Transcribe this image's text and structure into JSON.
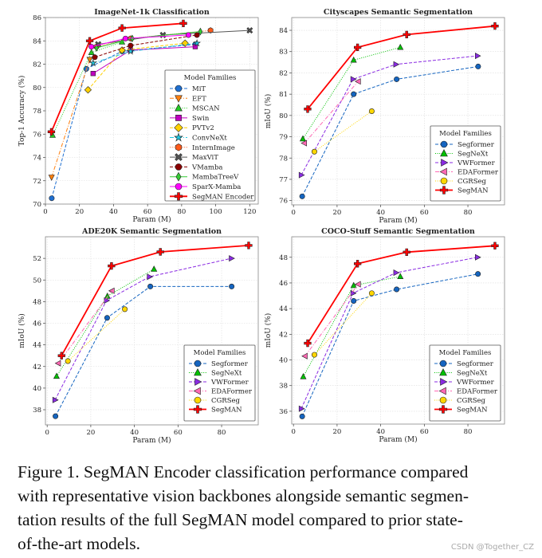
{
  "chart_data": [
    {
      "type": "line",
      "title": "ImageNet-1k Classification",
      "xlabel": "Param (M)",
      "ylabel": "Top-1 Accuracy (%)",
      "xlim": [
        0,
        125
      ],
      "ylim": [
        70,
        86
      ],
      "xticks": [
        0,
        20,
        40,
        60,
        80,
        100,
        120
      ],
      "yticks": [
        70,
        72,
        74,
        76,
        78,
        80,
        82,
        84,
        86
      ],
      "grid": true,
      "legend": {
        "title": "Model Families",
        "placement": "lower-right"
      },
      "series": [
        {
          "name": "MiT",
          "color": "#1f6fd0",
          "marker": "circle",
          "line": "dashed",
          "points": [
            [
              3.7,
              70.5
            ],
            [
              24,
              81.6
            ],
            [
              45,
              83.1
            ],
            [
              88,
              83.7
            ]
          ]
        },
        {
          "name": "EFT",
          "color": "#ff7f0e",
          "marker": "triangle-down",
          "line": "dashdot",
          "points": [
            [
              3.6,
              72.3
            ],
            [
              26,
              82.4
            ]
          ]
        },
        {
          "name": "MSCAN",
          "color": "#22cc22",
          "marker": "triangle-up",
          "line": "dotted",
          "points": [
            [
              4.2,
              75.9
            ],
            [
              27,
              83.0
            ],
            [
              45,
              83.9
            ]
          ]
        },
        {
          "name": "Swin",
          "color": "#c000c0",
          "marker": "square",
          "line": "solid",
          "points": [
            [
              28,
              81.2
            ],
            [
              50,
              83.2
            ],
            [
              88,
              83.5
            ]
          ]
        },
        {
          "name": "PVTv2",
          "color": "#ffd000",
          "marker": "diamond",
          "line": "dashed",
          "points": [
            [
              25,
              79.8
            ],
            [
              45,
              83.2
            ],
            [
              82,
              83.8
            ]
          ]
        },
        {
          "name": "ConvNeXt",
          "color": "#20c8e0",
          "marker": "star",
          "line": "dashdot",
          "points": [
            [
              28,
              82.1
            ],
            [
              50,
              83.1
            ],
            [
              89,
              83.8
            ]
          ]
        },
        {
          "name": "InternImage",
          "color": "#ff5a1a",
          "marker": "hexagon",
          "line": "dotted",
          "points": [
            [
              30,
              83.5
            ],
            [
              50,
              84.2
            ],
            [
              97,
              84.9
            ]
          ]
        },
        {
          "name": "MaxViT",
          "color": "#555555",
          "marker": "x-filled",
          "line": "solid",
          "points": [
            [
              31,
              83.7
            ],
            [
              69,
              84.5
            ],
            [
              120,
              84.9
            ]
          ]
        },
        {
          "name": "VMamba",
          "color": "#8b0000",
          "marker": "circle",
          "line": "dashed",
          "points": [
            [
              29,
              82.6
            ],
            [
              50,
              83.6
            ],
            [
              89,
              84.5
            ]
          ]
        },
        {
          "name": "MambaTreeV",
          "color": "#33cc33",
          "marker": "thin-diamond",
          "line": "solid",
          "points": [
            [
              30,
              83.4
            ],
            [
              51,
              84.2
            ],
            [
              91,
              84.8
            ]
          ]
        },
        {
          "name": "SparX-Mamba",
          "color": "#ff00ff",
          "marker": "circle",
          "line": "solid",
          "points": [
            [
              27,
              83.5
            ],
            [
              47,
              84.2
            ],
            [
              84,
              84.5
            ]
          ]
        },
        {
          "name": "SegMAN Encoder",
          "color": "#ff0000",
          "marker": "plus-filled",
          "line": "solid-thick",
          "points": [
            [
              3.5,
              76.2
            ],
            [
              26,
              84.0
            ],
            [
              45,
              85.1
            ],
            [
              81,
              85.5
            ]
          ]
        }
      ]
    },
    {
      "type": "line",
      "title": "Cityscapes Semantic Segmentation",
      "xlabel": "Param (M)",
      "ylabel": "mIoU (%)",
      "xlim": [
        -0.8,
        96.8
      ],
      "ylim": [
        75.8,
        84.6
      ],
      "xticks": [
        0,
        20,
        40,
        60,
        80
      ],
      "yticks": [
        76,
        77,
        78,
        79,
        80,
        81,
        82,
        83,
        84
      ],
      "grid": true,
      "legend": {
        "title": "Model Families",
        "placement": "lower-right"
      },
      "series": [
        {
          "name": "Segformer",
          "color": "#1565c0",
          "marker": "circle",
          "line": "dashed",
          "points": [
            [
              4,
              76.2
            ],
            [
              27.6,
              81.0
            ],
            [
              47.3,
              81.7
            ],
            [
              84.7,
              82.3
            ]
          ]
        },
        {
          "name": "SegNeXt",
          "color": "#00c000",
          "marker": "triangle-up",
          "line": "dotted",
          "points": [
            [
              4.3,
              78.9
            ],
            [
              27.6,
              82.6
            ],
            [
              49,
              83.2
            ]
          ]
        },
        {
          "name": "VWFormer",
          "color": "#8a2be2",
          "marker": "triangle-right",
          "line": "dashed",
          "points": [
            [
              3.6,
              77.2
            ],
            [
              27.3,
              81.7
            ],
            [
              47,
              82.4
            ],
            [
              84.4,
              82.8
            ]
          ]
        },
        {
          "name": "EDAFormer",
          "color": "#ff69b4",
          "marker": "triangle-left",
          "line": "dashdot",
          "points": [
            [
              5,
              78.7
            ],
            [
              29.7,
              81.6
            ]
          ]
        },
        {
          "name": "CGRSeg",
          "color": "#ffd700",
          "marker": "circle",
          "line": "dotted",
          "points": [
            [
              9.6,
              78.3
            ],
            [
              35.9,
              80.2
            ]
          ]
        },
        {
          "name": "SegMAN",
          "color": "#ff0000",
          "marker": "plus-filled",
          "line": "solid-thick",
          "points": [
            [
              6.5,
              80.3
            ],
            [
              29.4,
              83.2
            ],
            [
              51.9,
              83.8
            ],
            [
              92.4,
              84.2
            ]
          ]
        }
      ]
    },
    {
      "type": "line",
      "title": "ADE20K Semantic Segmentation",
      "xlabel": "Param (M)",
      "ylabel": "mIoU (%)",
      "xlim": [
        -0.8,
        96.8
      ],
      "ylim": [
        36.6,
        54.0
      ],
      "xticks": [
        0,
        20,
        40,
        60,
        80
      ],
      "yticks": [
        38,
        40,
        42,
        44,
        46,
        48,
        50,
        52
      ],
      "grid": true,
      "legend": {
        "title": "Model Families",
        "placement": "lower-right"
      },
      "series": [
        {
          "name": "Segformer",
          "color": "#1565c0",
          "marker": "circle",
          "line": "dashed",
          "points": [
            [
              3.8,
              37.4
            ],
            [
              27.5,
              46.5
            ],
            [
              47.3,
              49.4
            ],
            [
              84.6,
              49.4
            ]
          ]
        },
        {
          "name": "SegNeXt",
          "color": "#00c000",
          "marker": "triangle-up",
          "line": "dotted",
          "points": [
            [
              4.3,
              41.1
            ],
            [
              27.6,
              48.5
            ],
            [
              49,
              51.0
            ]
          ]
        },
        {
          "name": "VWFormer",
          "color": "#8a2be2",
          "marker": "triangle-right",
          "line": "dashed",
          "points": [
            [
              3.6,
              38.9
            ],
            [
              27.2,
              48.1
            ],
            [
              46.9,
              50.3
            ],
            [
              84.5,
              52.0
            ]
          ]
        },
        {
          "name": "EDAFormer",
          "color": "#ff69b4",
          "marker": "triangle-left",
          "line": "dashdot",
          "points": [
            [
              5.1,
              42.3
            ],
            [
              29.7,
              49.0
            ]
          ]
        },
        {
          "name": "CGRSeg",
          "color": "#ffd700",
          "marker": "circle",
          "line": "dotted",
          "points": [
            [
              9.5,
              42.5
            ],
            [
              35.6,
              47.3
            ]
          ]
        },
        {
          "name": "SegMAN",
          "color": "#ff0000",
          "marker": "plus-filled",
          "line": "solid-thick",
          "points": [
            [
              6.6,
              43.0
            ],
            [
              29.5,
              51.3
            ],
            [
              51.9,
              52.6
            ],
            [
              92.4,
              53.2
            ]
          ]
        }
      ]
    },
    {
      "type": "line",
      "title": "COCO-Stuff Semantic Segmentation",
      "xlabel": "Param (M)",
      "ylabel": "mIoU (%)",
      "xlim": [
        -0.8,
        96.8
      ],
      "ylim": [
        35.0,
        49.6
      ],
      "xticks": [
        0,
        20,
        40,
        60,
        80
      ],
      "yticks": [
        36,
        38,
        40,
        42,
        44,
        46,
        48
      ],
      "grid": true,
      "legend": {
        "title": "Model Families",
        "placement": "lower-right"
      },
      "series": [
        {
          "name": "Segformer",
          "color": "#1565c0",
          "marker": "circle",
          "line": "dashed",
          "points": [
            [
              4,
              35.6
            ],
            [
              27.6,
              44.6
            ],
            [
              47.3,
              45.5
            ],
            [
              84.6,
              46.7
            ]
          ]
        },
        {
          "name": "SegNeXt",
          "color": "#00c000",
          "marker": "triangle-up",
          "line": "dotted",
          "points": [
            [
              4.5,
              38.7
            ],
            [
              27.6,
              45.8
            ],
            [
              49,
              46.5
            ]
          ]
        },
        {
          "name": "VWFormer",
          "color": "#8a2be2",
          "marker": "triangle-right",
          "line": "dashed",
          "points": [
            [
              3.6,
              36.2
            ],
            [
              27.3,
              45.2
            ],
            [
              47,
              46.8
            ],
            [
              84.4,
              48.0
            ]
          ]
        },
        {
          "name": "EDAFormer",
          "color": "#ff69b4",
          "marker": "triangle-left",
          "line": "dashdot",
          "points": [
            [
              5.3,
              40.3
            ],
            [
              29.7,
              45.9
            ]
          ]
        },
        {
          "name": "CGRSeg",
          "color": "#ffd700",
          "marker": "circle",
          "line": "dotted",
          "points": [
            [
              9.6,
              40.4
            ],
            [
              35.9,
              45.2
            ]
          ]
        },
        {
          "name": "SegMAN",
          "color": "#ff0000",
          "marker": "plus-filled",
          "line": "solid-thick",
          "points": [
            [
              6.5,
              41.3
            ],
            [
              29.4,
              47.5
            ],
            [
              51.9,
              48.4
            ],
            [
              92.4,
              48.9
            ]
          ]
        }
      ]
    }
  ],
  "caption": {
    "lines": [
      "Figure 1. SegMAN Encoder classification performance compared",
      "with representative vision backbones alongside semantic segmen-",
      "tation results of the full SegMAN model compared to prior state-",
      "of-the-art models."
    ]
  },
  "watermark": "CSDN @Together_CZ"
}
